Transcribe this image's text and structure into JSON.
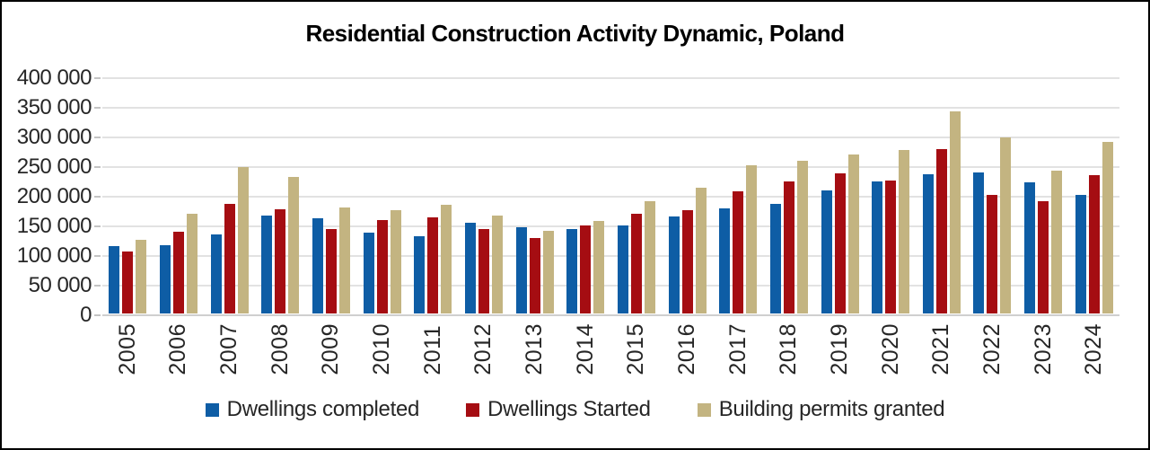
{
  "chart_data": {
    "type": "bar",
    "title": "Residential Construction Activity Dynamic, Poland",
    "categories": [
      "2005",
      "2006",
      "2007",
      "2008",
      "2009",
      "2010",
      "2011",
      "2012",
      "2013",
      "2014",
      "2015",
      "2016",
      "2017",
      "2018",
      "2019",
      "2020",
      "2021",
      "2022",
      "2023",
      "2024"
    ],
    "series": [
      {
        "name": "Dwellings completed",
        "color": "#0e5da5",
        "values": [
          114000,
          115000,
          133000,
          165000,
          160000,
          136000,
          131000,
          153000,
          145000,
          143000,
          148000,
          163000,
          178000,
          185000,
          207000,
          222000,
          235000,
          238000,
          221000,
          200000
        ]
      },
      {
        "name": "Dwellings Started",
        "color": "#a50d12",
        "values": [
          104000,
          138000,
          185000,
          175000,
          142000,
          158000,
          162000,
          142000,
          127000,
          148000,
          168000,
          174000,
          206000,
          222000,
          236000,
          224000,
          277000,
          200000,
          189000,
          233000
        ]
      },
      {
        "name": "Building permits granted",
        "color": "#c3b481",
        "values": [
          124000,
          168000,
          247000,
          230000,
          179000,
          174000,
          184000,
          165000,
          139000,
          156000,
          189000,
          212000,
          250000,
          257000,
          268000,
          276000,
          341000,
          297000,
          241000,
          290000
        ]
      }
    ],
    "xlabel": "",
    "ylabel": "",
    "ylim": [
      0,
      400000
    ],
    "ytick_step": 50000,
    "ytick_labels": [
      "400 000",
      "350 000",
      "300 000",
      "250 000",
      "200 000",
      "150 000",
      "100 000",
      "50 000",
      "0"
    ],
    "grid": "horizontal-on",
    "legend_position": "bottom"
  },
  "styles": {
    "background": "#ffffff",
    "frame_border": "#000000",
    "gridline_color": "#e2e2e2",
    "baseline_color": "#cfcfcf",
    "tick_color": "#c4c4c4",
    "label_color": "#262626",
    "title_color": "#000000"
  }
}
